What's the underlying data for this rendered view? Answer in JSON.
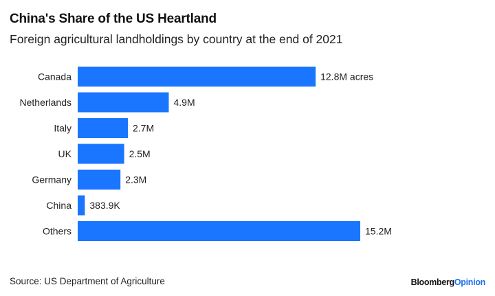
{
  "header": {
    "title": "China's Share of the US Heartland",
    "subtitle": "Foreign agricultural landholdings by country at the end of 2021"
  },
  "footer": {
    "source": "Source: US Department of Agriculture",
    "brand_part1": "Bloomberg",
    "brand_part2": "Opinion"
  },
  "colors": {
    "bar": "#1a75ff",
    "brand_accent": "#1e6ff0"
  },
  "chart_data": {
    "type": "bar",
    "orientation": "horizontal",
    "title": "China's Share of the US Heartland",
    "subtitle": "Foreign agricultural landholdings by country at the end of 2021",
    "xlabel": "",
    "ylabel": "",
    "unit": "acres",
    "grid": false,
    "legend": "none",
    "categories": [
      "Canada",
      "Netherlands",
      "Italy",
      "UK",
      "Germany",
      "China",
      "Others"
    ],
    "values": [
      12800000,
      4900000,
      2700000,
      2500000,
      2300000,
      383900,
      15200000
    ],
    "data_labels": [
      "12.8M acres",
      "4.9M",
      "2.7M",
      "2.5M",
      "2.3M",
      "383.9K",
      "15.2M"
    ],
    "xlim": [
      0,
      15200000
    ]
  }
}
